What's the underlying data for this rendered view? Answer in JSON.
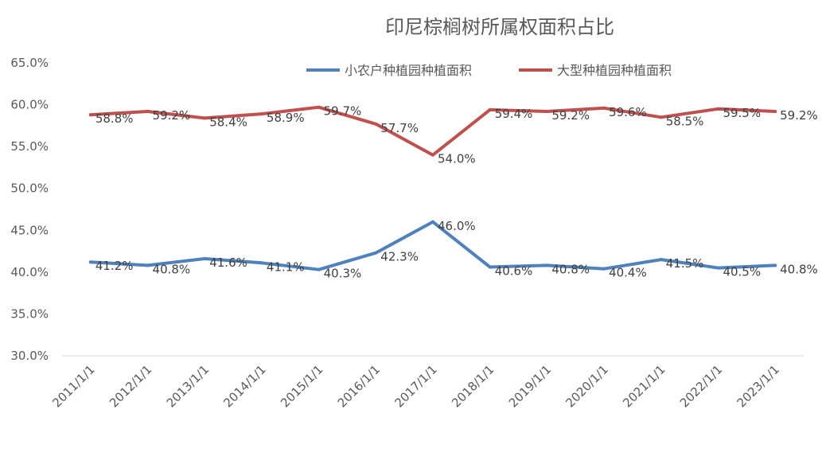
{
  "chart_data": {
    "type": "line",
    "title": "印尼棕榈树所属权面积占比",
    "xlabel": "",
    "ylabel": "",
    "ylim": [
      30.0,
      65.0
    ],
    "ytick_step": 5,
    "yticks": [
      "30.0%",
      "35.0%",
      "40.0%",
      "45.0%",
      "50.0%",
      "55.0%",
      "60.0%",
      "65.0%"
    ],
    "categories": [
      "2011/1/1",
      "2012/1/1",
      "2013/1/1",
      "2014/1/1",
      "2015/1/1",
      "2016/1/1",
      "2017/1/1",
      "2018/1/1",
      "2019/1/1",
      "2020/1/1",
      "2021/1/1",
      "2022/1/1",
      "2023/1/1"
    ],
    "grid": "horizontal-baseline-only",
    "legend_position": "top-right",
    "series": [
      {
        "name": "小农户种植园种植面积",
        "color": "#4f81bd",
        "values": [
          41.2,
          40.8,
          41.6,
          41.1,
          40.3,
          42.3,
          46.0,
          40.6,
          40.8,
          40.4,
          41.5,
          40.5,
          40.8
        ],
        "labels": [
          "41.2%",
          "40.8%",
          "41.6%",
          "41.1%",
          "40.3%",
          "42.3%",
          "46.0%",
          "40.6%",
          "40.8%",
          "40.4%",
          "41.5%",
          "40.5%",
          "40.8%"
        ]
      },
      {
        "name": "大型种植园种植面积",
        "color": "#c0504d",
        "values": [
          58.8,
          59.2,
          58.4,
          58.9,
          59.7,
          57.7,
          54.0,
          59.4,
          59.2,
          59.6,
          58.5,
          59.5,
          59.2
        ],
        "labels": [
          "58.8%",
          "59.2%",
          "58.4%",
          "58.9%",
          "59.7%",
          "57.7%",
          "54.0%",
          "59.4%",
          "59.2%",
          "59.6%",
          "58.5%",
          "59.5%",
          "59.2%"
        ]
      }
    ]
  }
}
